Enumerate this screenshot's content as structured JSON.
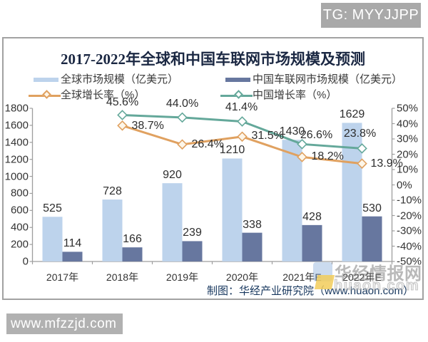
{
  "badges": {
    "telegram": "TG: MYYJJPP",
    "site": "www.mfzzjd.com"
  },
  "watermark": {
    "brand_cn": "华经情报网",
    "brand_en": "huaon.com"
  },
  "attribution": "制图：华经产业研究院（www.huaon.com）",
  "chart_data": {
    "type": "combo-bar-line",
    "title": "2017-2022年全球和中国车联网市场规模及预测",
    "categories": [
      "2017年",
      "2018年",
      "2019年",
      "2020年",
      "2021年E",
      "2022年E"
    ],
    "series": [
      {
        "name": "全球市场规模（亿美元）",
        "type": "bar",
        "axis": "left",
        "color": "#bdd3ec",
        "values": [
          525,
          728,
          920,
          1210,
          1430,
          1629
        ],
        "labels": [
          "525",
          "728",
          "920",
          "1210",
          "1430",
          "1629"
        ]
      },
      {
        "name": "中国车联网市场规模（亿美元）",
        "type": "bar",
        "axis": "left",
        "color": "#67779f",
        "values": [
          114,
          166,
          239,
          338,
          428,
          530
        ],
        "labels": [
          "114",
          "166",
          "239",
          "338",
          "428",
          "530"
        ]
      },
      {
        "name": "全球增长率（%）",
        "type": "line",
        "axis": "right",
        "color": "#e0a160",
        "marker_fill": "#fdf6e9",
        "values": [
          null,
          38.7,
          26.4,
          31.5,
          18.2,
          13.9
        ],
        "labels": [
          null,
          "38.7%",
          "26.4%",
          "31.5%",
          "18.2%",
          "13.9%"
        ],
        "label_position": "right"
      },
      {
        "name": "中国增长率（%）",
        "type": "line",
        "axis": "right",
        "color": "#64a89a",
        "marker_fill": "#ffffff",
        "values": [
          null,
          45.6,
          44.0,
          41.4,
          26.6,
          23.8
        ],
        "labels": [
          null,
          "45.6%",
          "44.0%",
          "41.4%",
          "26.6%",
          "23.8%"
        ],
        "label_position": "above"
      }
    ],
    "left_axis": {
      "min": 0,
      "max": 1800,
      "step": 200,
      "ticks": [
        "0",
        "200",
        "400",
        "600",
        "800",
        "1000",
        "1200",
        "1400",
        "1600",
        "1800"
      ]
    },
    "right_axis": {
      "min": -50,
      "max": 50,
      "step": 10,
      "ticks": [
        "-50%",
        "-40%",
        "-30%",
        "-20%",
        "-10%",
        "0%",
        "10%",
        "20%",
        "30%",
        "40%",
        "50%"
      ]
    },
    "legend_position": "top",
    "grid": false
  }
}
